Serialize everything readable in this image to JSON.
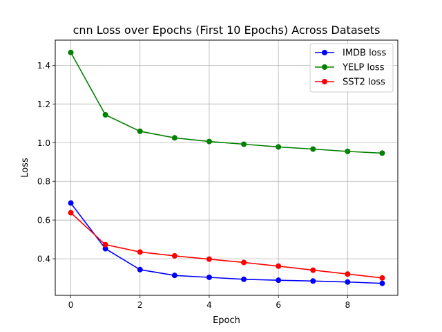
{
  "chart_data": {
    "type": "line",
    "title": "cnn Loss over Epochs (First 10 Epochs) Across Datasets",
    "xlabel": "Epoch",
    "ylabel": "Loss",
    "xlim": [
      -0.45,
      9.45
    ],
    "ylim": [
      0.211,
      1.53
    ],
    "x_ticks": [
      0,
      2,
      4,
      6,
      8
    ],
    "y_ticks": [
      0.4,
      0.6,
      0.8,
      1.0,
      1.2,
      1.4
    ],
    "x_tick_labels": [
      "0",
      "2",
      "4",
      "6",
      "8"
    ],
    "y_tick_labels": [
      "0.4",
      "0.6",
      "0.8",
      "1.0",
      "1.2",
      "1.4"
    ],
    "grid": true,
    "legend_position": "top-right",
    "x": [
      0,
      1,
      2,
      3,
      4,
      5,
      6,
      7,
      8,
      9
    ],
    "series": [
      {
        "name": "IMDB loss",
        "color": "#0000ff",
        "values": [
          0.688,
          0.452,
          0.344,
          0.314,
          0.304,
          0.294,
          0.289,
          0.285,
          0.28,
          0.273
        ]
      },
      {
        "name": "YELP loss",
        "color": "#008000",
        "values": [
          1.466,
          1.144,
          1.059,
          1.025,
          1.006,
          0.992,
          0.978,
          0.967,
          0.955,
          0.946
        ]
      },
      {
        "name": "SST2 loss",
        "color": "#ff0000",
        "values": [
          0.638,
          0.473,
          0.435,
          0.415,
          0.398,
          0.381,
          0.362,
          0.341,
          0.321,
          0.301
        ]
      }
    ]
  }
}
